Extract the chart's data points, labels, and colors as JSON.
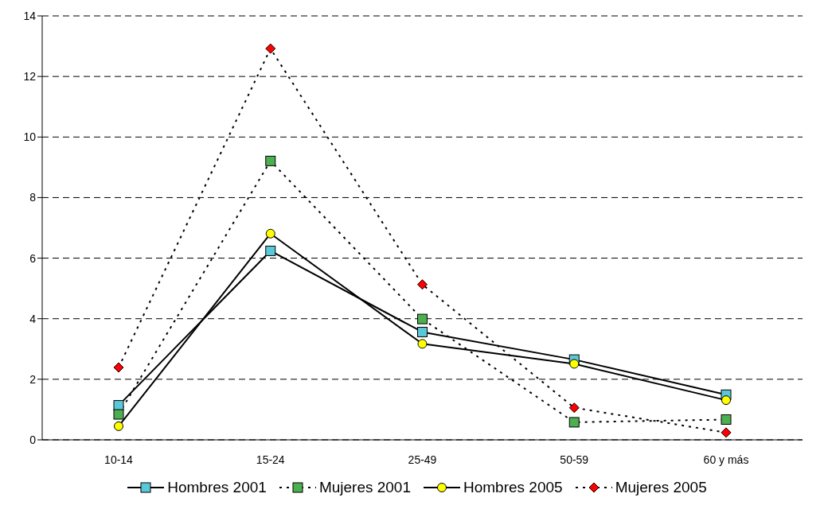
{
  "chart_data": {
    "type": "line",
    "categories": [
      "10-14",
      "15-24",
      "25-49",
      "50-59",
      "60 y más"
    ],
    "series": [
      {
        "name": "Hombres 2001",
        "color": "#5bc8d8",
        "marker": "square",
        "line_style": "solid",
        "values": [
          1.14,
          6.24,
          3.56,
          2.65,
          1.49
        ]
      },
      {
        "name": "Mujeres 2001",
        "color": "#4caf50",
        "marker": "square",
        "line_style": "dotted",
        "values": [
          0.84,
          9.21,
          3.99,
          0.58,
          0.67
        ]
      },
      {
        "name": "Hombres 2005",
        "color": "#ffff00",
        "marker": "circle",
        "line_style": "solid",
        "values": [
          0.45,
          6.81,
          3.17,
          2.51,
          1.31
        ]
      },
      {
        "name": "Mujeres 2005",
        "color": "#ff0000",
        "marker": "diamond",
        "line_style": "dotted",
        "values": [
          2.39,
          12.92,
          5.13,
          1.06,
          0.24
        ]
      }
    ],
    "ylim": [
      0,
      14
    ],
    "yticks": [
      0,
      2,
      4,
      6,
      8,
      10,
      12,
      14
    ],
    "grid": "y",
    "legend": "bottom"
  }
}
